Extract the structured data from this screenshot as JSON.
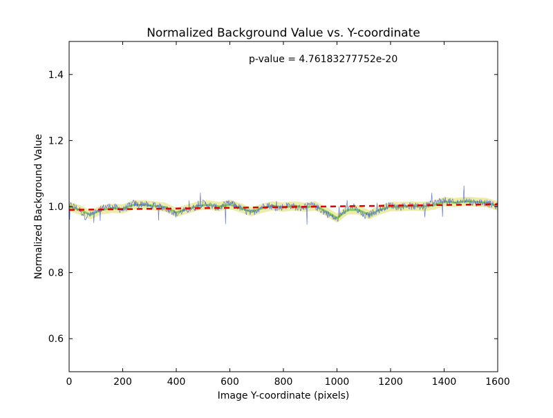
{
  "chart_data": {
    "type": "line",
    "title": "Normalized Background Value vs. Y-coordinate",
    "xlabel": "Image Y-coordinate (pixels)",
    "ylabel": "Normalized Background Value",
    "xlim": [
      0,
      1600
    ],
    "ylim": [
      0.5,
      1.5
    ],
    "x_ticks": [
      0,
      200,
      400,
      600,
      800,
      1000,
      1200,
      1400,
      1600
    ],
    "y_ticks": [
      0.6,
      0.8,
      1.0,
      1.2,
      1.4
    ],
    "x_tick_labels": [
      "0",
      "200",
      "400",
      "600",
      "800",
      "1000",
      "1200",
      "1400",
      "1600"
    ],
    "y_tick_labels": [
      "0.6",
      "0.8",
      "1.0",
      "1.2",
      "1.4"
    ],
    "annotation": "p-value = 4.76183277752e-20",
    "grid": false,
    "series": [
      {
        "role": "raw-data",
        "color": "#4a5fd0",
        "x": [
          0,
          20,
          40,
          60,
          80,
          100,
          120,
          140,
          160,
          180,
          200,
          220,
          240,
          260,
          280,
          300,
          320,
          340,
          360,
          380,
          400,
          420,
          440,
          460,
          480,
          500,
          520,
          540,
          560,
          580,
          600,
          620,
          640,
          660,
          680,
          700,
          720,
          740,
          760,
          780,
          800,
          820,
          840,
          860,
          880,
          900,
          920,
          940,
          960,
          980,
          1000,
          1020,
          1040,
          1060,
          1080,
          1100,
          1120,
          1140,
          1160,
          1180,
          1200,
          1220,
          1240,
          1260,
          1280,
          1300,
          1320,
          1340,
          1360,
          1380,
          1400,
          1420,
          1440,
          1460,
          1480,
          1500,
          1520,
          1540,
          1560,
          1580,
          1600
        ],
        "y": [
          1.005,
          1.0,
          0.99,
          0.97,
          0.975,
          0.99,
          0.995,
          1.0,
          1.0,
          0.995,
          0.99,
          1.0,
          1.01,
          1.005,
          1.01,
          1.0,
          1.005,
          1.0,
          0.995,
          0.99,
          0.975,
          0.985,
          0.99,
          0.995,
          1.0,
          1.01,
          1.005,
          1.0,
          0.995,
          1.005,
          1.01,
          1.005,
          0.995,
          0.985,
          0.98,
          0.99,
          1.0,
          1.005,
          1.0,
          0.995,
          1.0,
          1.005,
          1.0,
          0.995,
          1.0,
          1.005,
          1.0,
          0.99,
          0.98,
          0.97,
          0.96,
          0.98,
          0.995,
          1.0,
          0.985,
          0.97,
          0.975,
          0.985,
          0.99,
          1.0,
          1.005,
          1.0,
          1.0,
          1.005,
          1.0,
          1.0,
          1.0,
          1.005,
          1.01,
          1.015,
          1.02,
          1.015,
          1.01,
          1.015,
          1.02,
          1.015,
          1.01,
          1.015,
          1.01,
          1.005,
          1.0
        ]
      },
      {
        "role": "smoothed",
        "color": "#6fbf4a",
        "x": [
          0,
          40,
          80,
          120,
          160,
          200,
          240,
          280,
          320,
          360,
          400,
          440,
          480,
          520,
          560,
          600,
          640,
          680,
          720,
          760,
          800,
          840,
          880,
          920,
          960,
          1000,
          1040,
          1080,
          1120,
          1160,
          1200,
          1240,
          1280,
          1320,
          1360,
          1400,
          1440,
          1480,
          1520,
          1560,
          1600
        ],
        "y": [
          1.0,
          0.99,
          0.975,
          0.99,
          0.995,
          0.993,
          1.005,
          1.005,
          1.002,
          0.998,
          0.982,
          0.992,
          1.002,
          1.005,
          1.0,
          1.006,
          0.996,
          0.984,
          0.995,
          1.002,
          0.998,
          1.002,
          0.998,
          1.002,
          0.985,
          0.965,
          0.99,
          0.99,
          0.975,
          0.99,
          1.0,
          1.0,
          1.002,
          1.0,
          1.004,
          1.015,
          1.012,
          1.016,
          1.014,
          1.012,
          1.002
        ]
      },
      {
        "role": "linear-fit",
        "color": "#e00000",
        "x": [
          0,
          1600
        ],
        "y": [
          0.99,
          1.007
        ]
      }
    ]
  },
  "colors": {
    "envelope": "#e6e68c",
    "axes": "#000000"
  }
}
